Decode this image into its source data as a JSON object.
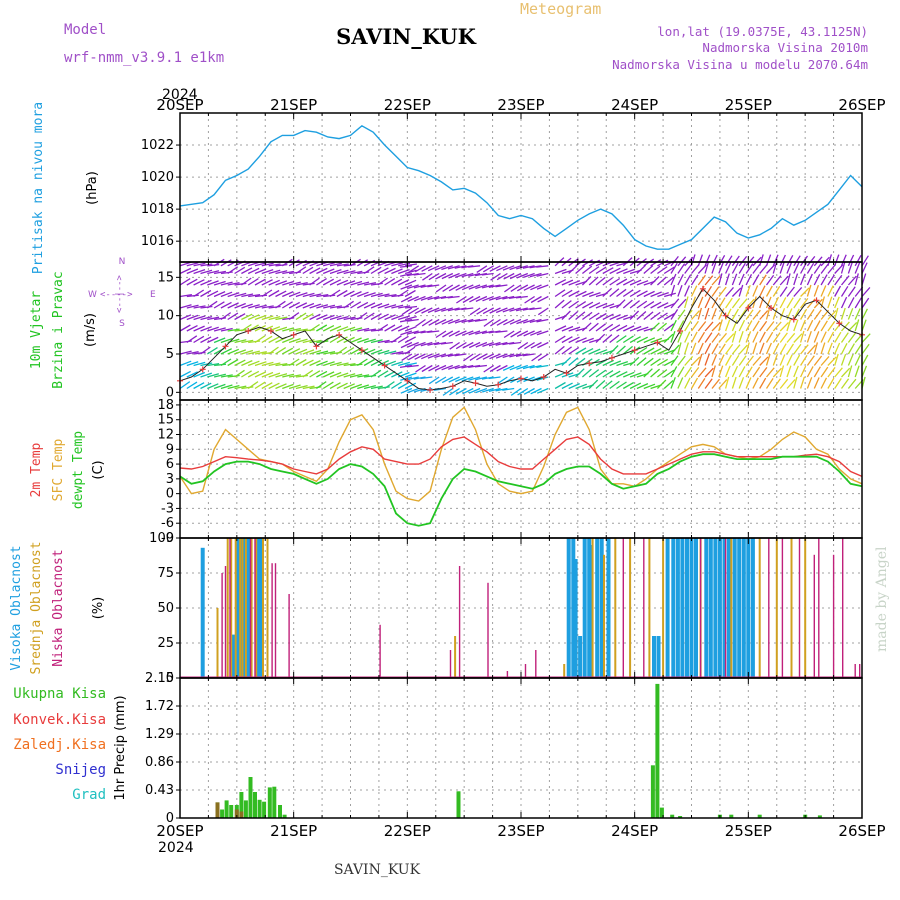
{
  "header": {
    "model_label": "Model",
    "model_name": "wrf-nmm_v3.9.1  e1km",
    "station": "SAVIN_KUK",
    "meteogram_label": "Meteogram",
    "lonlat": "lon,lat (19.0375E, 43.1125N)",
    "elevation": "Nadmorska Visina 2010m",
    "elevation_model": "Nadmorska Visina u modelu 2070.64m",
    "footer_station": "SAVIN_KUK",
    "watermark": "made by Angel",
    "year": "2024"
  },
  "colors": {
    "pressure": "#1e9fe0",
    "temp2m": "#e83c3c",
    "sfc": "#e0a830",
    "dewpt": "#22c422",
    "high_cloud": "#1e9fe0",
    "mid_cloud": "#d0a020",
    "low_cloud": "#c0207a",
    "precip_total": "#33bb22",
    "precip_conv": "#e83c3c",
    "precip_frozen": "#f07020",
    "precip_snow": "#3030d0",
    "precip_grad": "#20c0c0",
    "wind_purple": "#8a20c8"
  },
  "chart_data": [
    {
      "id": "pressure",
      "type": "line",
      "ylabel_left": "Pritisak na nivou mora",
      "ylabel_unit": "(hPa)",
      "ylim": [
        1014.7,
        1024.0
      ],
      "yticks": [
        1016,
        1018,
        1020,
        1022
      ],
      "x_days": [
        "20SEP",
        "21SEP",
        "22SEP",
        "23SEP",
        "24SEP",
        "25SEP",
        "26SEP"
      ],
      "grid": true,
      "series": [
        {
          "x": [
            0,
            0.1,
            0.2,
            0.3,
            0.4,
            0.5,
            0.6,
            0.7,
            0.8,
            0.9,
            1.0,
            1.1,
            1.2,
            1.3,
            1.4,
            1.5,
            1.6,
            1.7,
            1.8,
            1.9,
            2.0,
            2.1,
            2.2,
            2.3,
            2.4,
            2.5,
            2.6,
            2.7,
            2.8,
            2.9,
            3.0,
            3.1,
            3.2,
            3.3,
            3.4,
            3.5,
            3.6,
            3.7,
            3.8,
            3.9,
            4.0,
            4.1,
            4.2,
            4.3,
            4.4,
            4.5,
            4.6,
            4.7,
            4.8,
            4.9,
            5.0,
            5.1,
            5.2,
            5.3,
            5.4,
            5.5,
            5.6,
            5.7,
            5.8,
            5.9,
            6.0
          ],
          "y": [
            1018.2,
            1018.3,
            1018.4,
            1018.9,
            1019.8,
            1020.1,
            1020.5,
            1021.3,
            1022.2,
            1022.6,
            1022.6,
            1022.9,
            1022.8,
            1022.5,
            1022.4,
            1022.6,
            1023.2,
            1022.8,
            1022.0,
            1021.3,
            1020.6,
            1020.4,
            1020.1,
            1019.7,
            1019.2,
            1019.3,
            1019.0,
            1018.4,
            1017.6,
            1017.4,
            1017.6,
            1017.4,
            1016.8,
            1016.3,
            1016.8,
            1017.3,
            1017.7,
            1018.0,
            1017.7,
            1017.0,
            1016.1,
            1015.7,
            1015.5,
            1015.5,
            1015.8,
            1016.1,
            1016.8,
            1017.5,
            1017.2,
            1016.5,
            1016.2,
            1016.4,
            1016.8,
            1017.4,
            1017.0,
            1017.3,
            1017.8,
            1018.3,
            1019.2,
            1020.1,
            1019.4
          ]
        }
      ]
    },
    {
      "id": "wind",
      "type": "line",
      "ylabel_left1": "10m Vjetar",
      "ylabel_left2": "Brzina i Pravac",
      "ylabel_unit": "(m/s)",
      "compass_n": "N",
      "compass_s": "S",
      "compass_w": "W",
      "compass_e": "E",
      "compass_arrows": "<---->",
      "compass_vertical": "<--|-->",
      "ylim": [
        -1.0,
        17.0
      ],
      "yticks": [
        0,
        5,
        10,
        15
      ],
      "grid": true,
      "series": [
        {
          "name": "speed",
          "x": [
            0,
            0.1,
            0.2,
            0.3,
            0.4,
            0.5,
            0.6,
            0.7,
            0.8,
            0.9,
            1.0,
            1.1,
            1.2,
            1.3,
            1.4,
            1.5,
            1.6,
            1.7,
            1.8,
            1.9,
            2.0,
            2.1,
            2.2,
            2.3,
            2.4,
            2.5,
            2.6,
            2.7,
            2.8,
            2.9,
            3.0,
            3.1,
            3.2,
            3.3,
            3.4,
            3.5,
            3.6,
            3.7,
            3.8,
            3.9,
            4.0,
            4.1,
            4.2,
            4.3,
            4.4,
            4.5,
            4.6,
            4.7,
            4.8,
            4.9,
            5.0,
            5.1,
            5.2,
            5.3,
            5.4,
            5.5,
            5.6,
            5.7,
            5.8,
            5.9,
            6.0
          ],
          "y": [
            1.5,
            2.0,
            3.0,
            4.5,
            6.0,
            7.5,
            8.0,
            8.5,
            8.0,
            7.0,
            7.5,
            8.0,
            6.0,
            7.0,
            7.5,
            6.5,
            5.5,
            4.5,
            3.5,
            2.5,
            1.5,
            0.5,
            0.3,
            0.5,
            0.8,
            1.5,
            1.2,
            0.8,
            1.0,
            1.5,
            1.8,
            1.5,
            2.0,
            3.0,
            2.5,
            3.5,
            3.8,
            4.0,
            4.5,
            5.0,
            5.5,
            6.0,
            6.5,
            5.5,
            8.0,
            11.0,
            13.5,
            12.0,
            10.0,
            9.0,
            11.0,
            12.5,
            11.0,
            10.0,
            9.5,
            11.5,
            12.0,
            10.5,
            9.0,
            8.0,
            7.5
          ]
        }
      ]
    },
    {
      "id": "temperature",
      "type": "line",
      "ylabel_l1": "2m Temp",
      "ylabel_l2": "SFC Temp",
      "ylabel_l3": "dewpt Temp",
      "ylabel_unit": "(C)",
      "ylim": [
        -9,
        19
      ],
      "yticks": [
        -9,
        -6,
        -3,
        0,
        3,
        6,
        9,
        12,
        15,
        18
      ],
      "grid": true,
      "series": [
        {
          "name": "2m Temp",
          "x": [
            0,
            0.1,
            0.2,
            0.3,
            0.4,
            0.5,
            0.6,
            0.7,
            0.8,
            0.9,
            1.0,
            1.1,
            1.2,
            1.3,
            1.4,
            1.5,
            1.6,
            1.7,
            1.8,
            1.9,
            2.0,
            2.1,
            2.2,
            2.3,
            2.4,
            2.5,
            2.6,
            2.7,
            2.8,
            2.9,
            3.0,
            3.1,
            3.2,
            3.3,
            3.4,
            3.5,
            3.6,
            3.7,
            3.8,
            3.9,
            4.0,
            4.1,
            4.2,
            4.3,
            4.4,
            4.5,
            4.6,
            4.7,
            4.8,
            4.9,
            5.0,
            5.1,
            5.2,
            5.3,
            5.4,
            5.5,
            5.6,
            5.7,
            5.8,
            5.9,
            6.0
          ],
          "y": [
            5.2,
            5.0,
            5.5,
            6.5,
            7.5,
            7.3,
            7.0,
            6.8,
            6.5,
            6.0,
            5.0,
            4.5,
            4.0,
            5.0,
            7.0,
            8.5,
            9.5,
            9.0,
            7.0,
            6.5,
            6.0,
            6.0,
            7.0,
            9.5,
            11.0,
            11.5,
            10.0,
            8.5,
            6.5,
            5.5,
            5.0,
            5.0,
            7.0,
            9.0,
            11.0,
            11.5,
            10.0,
            7.0,
            5.0,
            4.0,
            4.0,
            4.0,
            5.0,
            6.0,
            7.0,
            8.0,
            8.5,
            8.5,
            8.0,
            7.5,
            7.5,
            7.5,
            7.5,
            7.5,
            7.5,
            7.8,
            8.0,
            7.5,
            6.5,
            4.5,
            3.5
          ]
        },
        {
          "name": "SFC Temp",
          "x": [
            0,
            0.1,
            0.2,
            0.3,
            0.4,
            0.5,
            0.6,
            0.7,
            0.8,
            0.9,
            1.0,
            1.1,
            1.2,
            1.3,
            1.4,
            1.5,
            1.6,
            1.7,
            1.8,
            1.9,
            2.0,
            2.1,
            2.2,
            2.3,
            2.4,
            2.5,
            2.6,
            2.7,
            2.8,
            2.9,
            3.0,
            3.1,
            3.2,
            3.3,
            3.4,
            3.5,
            3.6,
            3.7,
            3.8,
            3.9,
            4.0,
            4.1,
            4.2,
            4.3,
            4.4,
            4.5,
            4.6,
            4.7,
            4.8,
            4.9,
            5.0,
            5.1,
            5.2,
            5.3,
            5.4,
            5.5,
            5.6,
            5.7,
            5.8,
            5.9,
            6.0
          ],
          "y": [
            3.5,
            0.0,
            0.5,
            9.0,
            13.0,
            11.0,
            9.0,
            7.0,
            6.5,
            6.0,
            4.5,
            3.5,
            2.5,
            5.0,
            10.5,
            15.0,
            16.0,
            13.0,
            6.0,
            0.5,
            -1.0,
            -1.5,
            0.5,
            9.0,
            15.5,
            17.5,
            13.0,
            6.0,
            2.0,
            0.5,
            0.0,
            0.5,
            5.5,
            12.0,
            16.5,
            17.5,
            13.0,
            5.0,
            2.0,
            2.0,
            1.5,
            3.0,
            5.0,
            6.5,
            8.0,
            9.5,
            10.0,
            9.5,
            8.0,
            7.5,
            7.0,
            7.5,
            9.0,
            11.0,
            12.5,
            11.5,
            9.0,
            8.0,
            5.0,
            3.0,
            2.0
          ]
        },
        {
          "name": "dewpt Temp",
          "x": [
            0,
            0.1,
            0.2,
            0.3,
            0.4,
            0.5,
            0.6,
            0.7,
            0.8,
            0.9,
            1.0,
            1.1,
            1.2,
            1.3,
            1.4,
            1.5,
            1.6,
            1.7,
            1.8,
            1.9,
            2.0,
            2.1,
            2.2,
            2.3,
            2.4,
            2.5,
            2.6,
            2.7,
            2.8,
            2.9,
            3.0,
            3.1,
            3.2,
            3.3,
            3.4,
            3.5,
            3.6,
            3.7,
            3.8,
            3.9,
            4.0,
            4.1,
            4.2,
            4.3,
            4.4,
            4.5,
            4.6,
            4.7,
            4.8,
            4.9,
            5.0,
            5.1,
            5.2,
            5.3,
            5.4,
            5.5,
            5.6,
            5.7,
            5.8,
            5.9,
            6.0
          ],
          "y": [
            3.5,
            2.0,
            2.5,
            4.5,
            6.0,
            6.5,
            6.5,
            6.0,
            5.0,
            4.5,
            4.0,
            3.0,
            2.0,
            3.0,
            5.0,
            6.0,
            5.5,
            4.0,
            1.5,
            -4.0,
            -6.0,
            -6.5,
            -6.0,
            -1.0,
            3.0,
            5.0,
            4.5,
            3.5,
            2.5,
            2.0,
            1.5,
            1.0,
            2.0,
            4.0,
            5.0,
            5.5,
            5.5,
            4.0,
            2.0,
            1.0,
            1.5,
            2.0,
            4.0,
            5.0,
            6.5,
            7.5,
            8.0,
            8.0,
            7.5,
            7.0,
            7.0,
            7.0,
            7.0,
            7.5,
            7.5,
            7.5,
            7.5,
            6.5,
            4.5,
            2.0,
            1.5
          ]
        }
      ]
    },
    {
      "id": "clouds",
      "type": "bar",
      "ylabel_l1": "Visoka Oblacnost",
      "ylabel_l2": "Srednja Oblacnost",
      "ylabel_l3": "Niska Oblacnost",
      "ylabel_unit": "(%)",
      "ylim": [
        0,
        100
      ],
      "yticks": [
        0,
        25,
        50,
        75,
        100
      ],
      "grid": true,
      "series": [
        {
          "name": "Visoka Oblacnost",
          "x": [
            0.2,
            0.47,
            0.51,
            0.54,
            0.56,
            0.6,
            0.68,
            0.71,
            3.42,
            3.46,
            3.48,
            3.52,
            3.56,
            3.6,
            3.62,
            3.67,
            3.71,
            3.77,
            4.17,
            4.21,
            4.29,
            4.34,
            4.38,
            4.42,
            4.46,
            4.5,
            4.54,
            4.63,
            4.67,
            4.71,
            4.75,
            4.79,
            4.83,
            4.88,
            4.92,
            4.96,
            5.0,
            5.04
          ],
          "y": [
            93,
            31,
            100,
            100,
            100,
            100,
            100,
            100,
            100,
            100,
            85,
            30,
            100,
            100,
            95,
            100,
            100,
            100,
            30,
            30,
            100,
            100,
            100,
            100,
            100,
            100,
            100,
            100,
            100,
            100,
            100,
            100,
            100,
            100,
            100,
            100,
            100,
            100
          ]
        },
        {
          "name": "Srednja Oblacnost",
          "x": [
            0.33,
            0.42,
            0.45,
            0.49,
            0.53,
            0.55,
            0.58,
            0.63,
            0.67,
            0.73,
            0.77,
            2.42,
            3.38,
            3.63,
            3.73,
            3.83,
            3.96,
            4.13,
            4.25,
            4.58,
            4.85,
            5.1,
            5.25,
            5.38,
            5.5
          ],
          "y": [
            50,
            100,
            100,
            100,
            100,
            100,
            100,
            100,
            100,
            100,
            100,
            30,
            10,
            100,
            88,
            100,
            100,
            100,
            100,
            100,
            100,
            100,
            100,
            100,
            100
          ]
        },
        {
          "name": "Niska Oblacnost",
          "x": [
            0.37,
            0.4,
            0.44,
            0.62,
            0.66,
            0.81,
            0.84,
            0.96,
            1.76,
            2.34,
            2.38,
            2.46,
            2.71,
            2.88,
            3.04,
            3.13,
            3.9,
            4.08,
            4.58,
            4.8,
            5.18,
            5.3,
            5.45,
            5.58,
            5.62,
            5.75,
            5.83,
            5.94,
            5.98
          ],
          "y": [
            75,
            80,
            100,
            100,
            100,
            82,
            82,
            60,
            38,
            0,
            20,
            80,
            68,
            5,
            10,
            20,
            100,
            100,
            100,
            100,
            100,
            100,
            100,
            88,
            100,
            88,
            100,
            10,
            10
          ]
        }
      ]
    },
    {
      "id": "precip",
      "type": "bar",
      "ylabel_unit": "1hr Precip (mm)",
      "legend": [
        "Ukupna Kisa",
        "Konvek.Kisa",
        "Zaledj.Kisa",
        "Snijeg",
        "Grad"
      ],
      "ylim": [
        0,
        2.15
      ],
      "yticks": [
        0,
        0.43,
        0.86,
        1.29,
        1.72,
        2.15
      ],
      "ytick_labels": [
        "0",
        "0.43",
        "0.86",
        "1.29",
        "1.72",
        "2.15"
      ],
      "grid": true,
      "series": [
        {
          "name": "Ukupna Kisa",
          "x": [
            0.33,
            0.37,
            0.41,
            0.45,
            0.5,
            0.54,
            0.58,
            0.62,
            0.66,
            0.7,
            0.74,
            0.79,
            0.83,
            0.88,
            0.92,
            2.45,
            4.16,
            4.2,
            4.24,
            4.33,
            4.4,
            4.75,
            4.85,
            5.1,
            5.5,
            5.63
          ],
          "y": [
            0.24,
            0.13,
            0.27,
            0.2,
            0.2,
            0.4,
            0.27,
            0.63,
            0.4,
            0.28,
            0.25,
            0.47,
            0.48,
            0.2,
            0.05,
            0.41,
            0.81,
            2.06,
            0.16,
            0.05,
            0.03,
            0.05,
            0.05,
            0.05,
            0.05,
            0.04
          ]
        },
        {
          "name": "Zaledj.Kisa",
          "x": [
            0.33,
            0.5,
            0.54
          ],
          "y": [
            0.24,
            0.13,
            0.1
          ]
        }
      ]
    }
  ]
}
